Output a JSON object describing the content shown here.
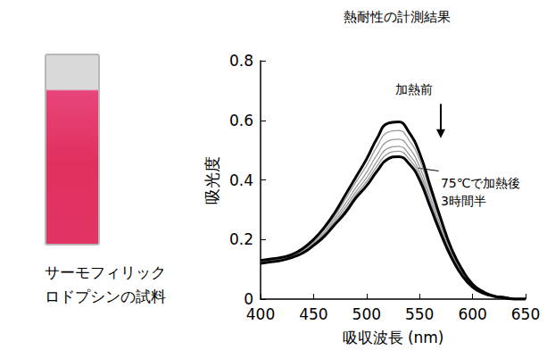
{
  "chart_data": {
    "type": "line",
    "title": "熱耐性の計測結果",
    "x_label": "吸収波長 (nm)",
    "y_label": "吸光度",
    "x": [
      400,
      410,
      420,
      430,
      440,
      450,
      460,
      470,
      480,
      490,
      500,
      510,
      520,
      530,
      540,
      550,
      560,
      570,
      580,
      590,
      600,
      610,
      620,
      630,
      640,
      650
    ],
    "series": [
      {
        "color": "#000000",
        "values": [
          0.13,
          0.135,
          0.14,
          0.15,
          0.17,
          0.2,
          0.24,
          0.29,
          0.35,
          0.41,
          0.47,
          0.54,
          0.59,
          0.595,
          0.56,
          0.49,
          0.38,
          0.27,
          0.17,
          0.1,
          0.05,
          0.025,
          0.01,
          0.005,
          0,
          0
        ]
      },
      {
        "color": "#9a9a9a",
        "values": [
          0.128,
          0.133,
          0.138,
          0.148,
          0.166,
          0.195,
          0.233,
          0.28,
          0.335,
          0.393,
          0.448,
          0.513,
          0.56,
          0.566,
          0.534,
          0.468,
          0.363,
          0.258,
          0.163,
          0.095,
          0.048,
          0.024,
          0.01,
          0.005,
          0,
          0
        ]
      },
      {
        "color": "#9a9a9a",
        "values": [
          0.125,
          0.13,
          0.135,
          0.145,
          0.163,
          0.19,
          0.225,
          0.27,
          0.32,
          0.375,
          0.425,
          0.485,
          0.53,
          0.537,
          0.508,
          0.445,
          0.345,
          0.245,
          0.155,
          0.09,
          0.045,
          0.023,
          0.01,
          0.005,
          0,
          0
        ]
      },
      {
        "color": "#9a9a9a",
        "values": [
          0.123,
          0.128,
          0.133,
          0.143,
          0.16,
          0.186,
          0.219,
          0.262,
          0.308,
          0.361,
          0.407,
          0.463,
          0.506,
          0.513,
          0.486,
          0.427,
          0.331,
          0.235,
          0.149,
          0.086,
          0.043,
          0.022,
          0.01,
          0.005,
          0,
          0
        ]
      },
      {
        "color": "#9a9a9a",
        "values": [
          0.122,
          0.127,
          0.132,
          0.142,
          0.157,
          0.183,
          0.215,
          0.256,
          0.299,
          0.35,
          0.394,
          0.447,
          0.488,
          0.496,
          0.471,
          0.414,
          0.32,
          0.228,
          0.144,
          0.083,
          0.042,
          0.021,
          0.01,
          0.005,
          0,
          0
        ]
      },
      {
        "color": "#000000",
        "values": [
          0.12,
          0.125,
          0.13,
          0.14,
          0.155,
          0.18,
          0.21,
          0.25,
          0.29,
          0.34,
          0.38,
          0.43,
          0.47,
          0.478,
          0.455,
          0.4,
          0.31,
          0.22,
          0.14,
          0.08,
          0.04,
          0.02,
          0.01,
          0.005,
          0,
          0
        ]
      }
    ],
    "xlim": [
      400,
      650
    ],
    "xticks": [
      400,
      450,
      500,
      550,
      600,
      650
    ],
    "ylim": [
      0,
      0.8
    ],
    "yticks": [
      0,
      0.2,
      0.4,
      0.6,
      0.8
    ],
    "grid": false,
    "annotations": [
      "加熱前",
      "75℃で加熱後\n3時間半"
    ]
  },
  "sample_caption": "サーモフィリック\nロドプシンの試料"
}
